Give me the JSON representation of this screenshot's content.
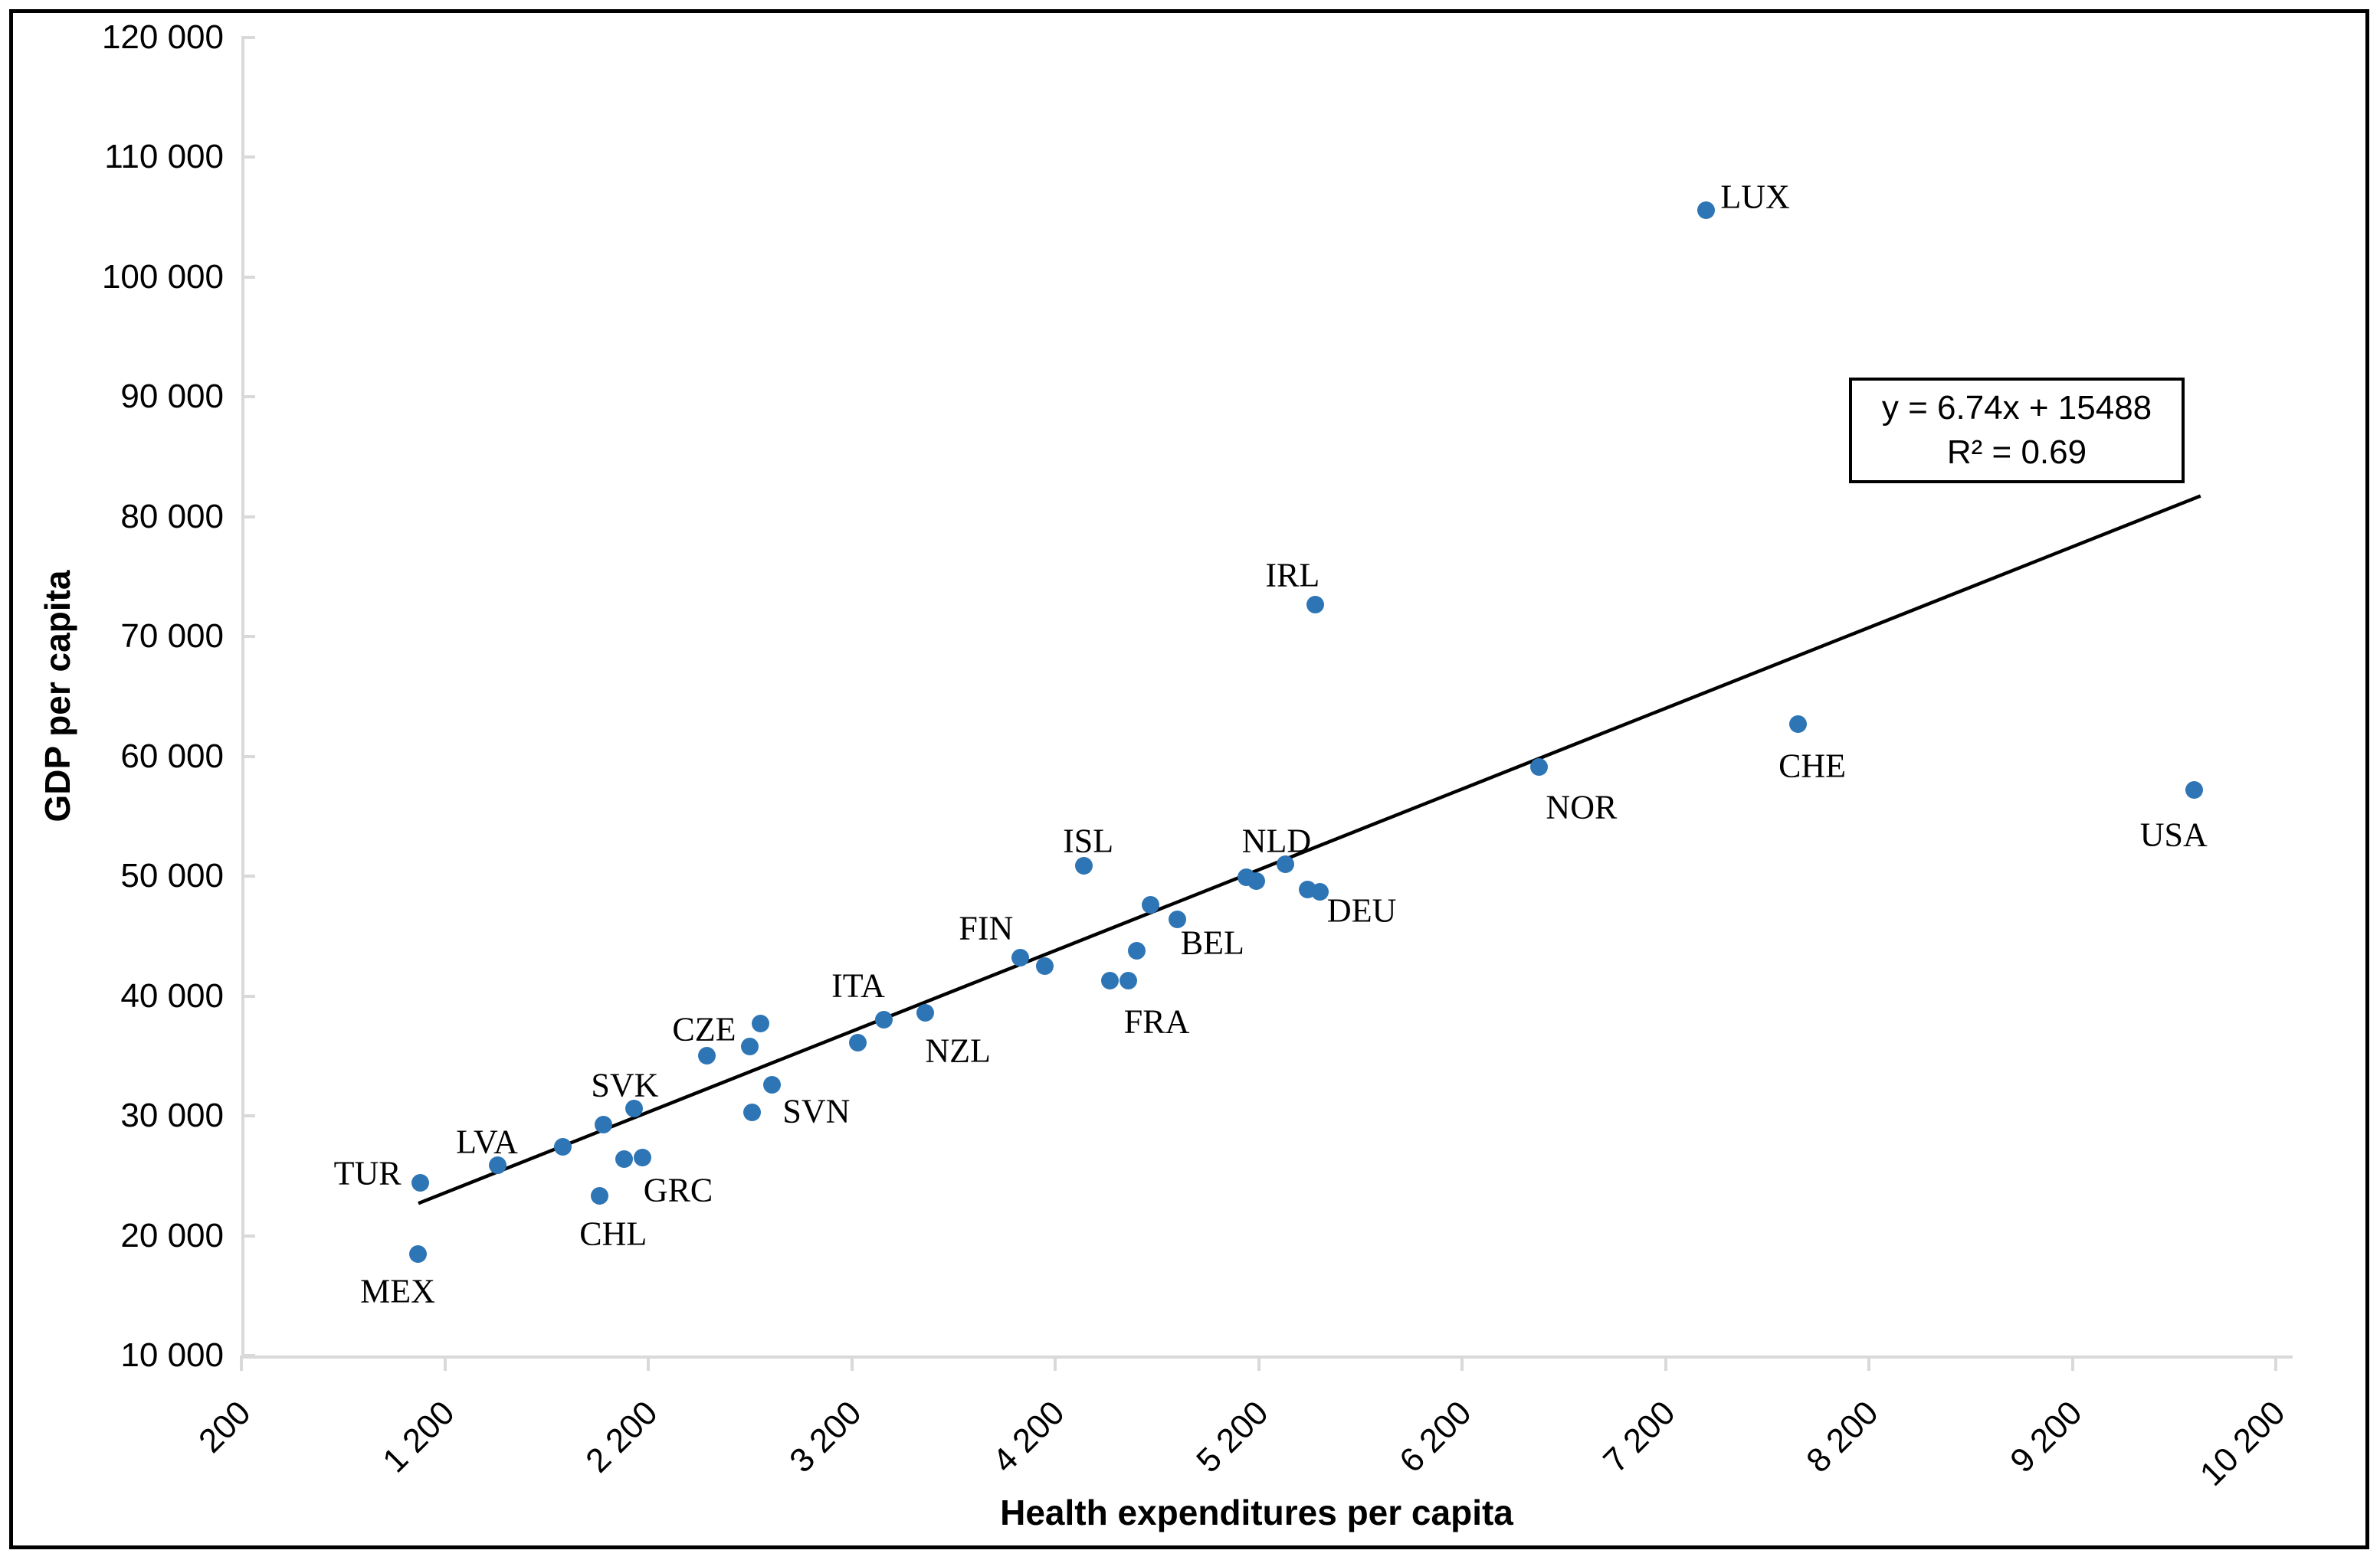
{
  "chart_data": {
    "type": "scatter",
    "title": "",
    "xlabel": "Health expenditures per capita",
    "ylabel": "GDP per capita",
    "xlim": [
      200,
      10280
    ],
    "ylim": [
      10000,
      120000
    ],
    "grid": false,
    "legend": "none",
    "marker_color": "#2E75B6",
    "axis_color": "#D9D9D9",
    "x_ticks": [
      {
        "value": 200,
        "label": "200"
      },
      {
        "value": 1200,
        "label": "1 200"
      },
      {
        "value": 2200,
        "label": "2 200"
      },
      {
        "value": 3200,
        "label": "3 200"
      },
      {
        "value": 4200,
        "label": "4 200"
      },
      {
        "value": 5200,
        "label": "5 200"
      },
      {
        "value": 6200,
        "label": "6 200"
      },
      {
        "value": 7200,
        "label": "7 200"
      },
      {
        "value": 8200,
        "label": "8 200"
      },
      {
        "value": 9200,
        "label": "9 200"
      },
      {
        "value": 10200,
        "label": "10 200"
      }
    ],
    "y_ticks": [
      {
        "value": 10000,
        "label": "10 000"
      },
      {
        "value": 20000,
        "label": "20 000"
      },
      {
        "value": 30000,
        "label": "30 000"
      },
      {
        "value": 40000,
        "label": "40 000"
      },
      {
        "value": 50000,
        "label": "50 000"
      },
      {
        "value": 60000,
        "label": "60 000"
      },
      {
        "value": 70000,
        "label": "70 000"
      },
      {
        "value": 80000,
        "label": "80 000"
      },
      {
        "value": 90000,
        "label": "90 000"
      },
      {
        "value": 100000,
        "label": "100 000"
      },
      {
        "value": 110000,
        "label": "110 000"
      },
      {
        "value": 120000,
        "label": "120 000"
      }
    ],
    "points": [
      {
        "label": "MEX",
        "x": 1070,
        "y": 18500,
        "label_offset": [
          -27,
          49
        ]
      },
      {
        "label": "TUR",
        "x": 1080,
        "y": 24400,
        "label_offset": [
          -69,
          -13
        ]
      },
      {
        "label": "LVA",
        "x": 1460,
        "y": 25900,
        "label_offset": [
          -14,
          -30
        ]
      },
      {
        "label": "",
        "x": 1780,
        "y": 27400
      },
      {
        "label": "CHL",
        "x": 1960,
        "y": 23300,
        "label_offset": [
          18,
          49
        ]
      },
      {
        "label": "",
        "x": 1980,
        "y": 29300
      },
      {
        "label": "",
        "x": 2080,
        "y": 26400
      },
      {
        "label": "SVK",
        "x": 2130,
        "y": 30600,
        "label_offset": [
          -12,
          -31
        ]
      },
      {
        "label": "GRC",
        "x": 2170,
        "y": 26500,
        "label_offset": [
          47,
          42
        ]
      },
      {
        "label": "CZE",
        "x": 2490,
        "y": 35000,
        "label_offset": [
          -4,
          -35
        ]
      },
      {
        "label": "",
        "x": 2700,
        "y": 35800
      },
      {
        "label": "SVN",
        "x": 2710,
        "y": 30300,
        "label_offset": [
          84,
          -1
        ]
      },
      {
        "label": "",
        "x": 2750,
        "y": 37700
      },
      {
        "label": "",
        "x": 2810,
        "y": 32600
      },
      {
        "label": "",
        "x": 3230,
        "y": 36100
      },
      {
        "label": "ITA",
        "x": 3360,
        "y": 38000,
        "label_offset": [
          -34,
          -45
        ]
      },
      {
        "label": "NZL",
        "x": 3560,
        "y": 38600,
        "label_offset": [
          43,
          49
        ]
      },
      {
        "label": "FIN",
        "x": 4030,
        "y": 43200,
        "label_offset": [
          -45,
          -39
        ]
      },
      {
        "label": "",
        "x": 4150,
        "y": 42500
      },
      {
        "label": "ISL",
        "x": 4340,
        "y": 50900,
        "label_offset": [
          6,
          -32
        ]
      },
      {
        "label": "",
        "x": 4470,
        "y": 41300
      },
      {
        "label": "FRA",
        "x": 4560,
        "y": 41300,
        "label_offset": [
          37,
          54
        ]
      },
      {
        "label": "",
        "x": 4600,
        "y": 43800
      },
      {
        "label": "",
        "x": 4670,
        "y": 47600
      },
      {
        "label": "BEL",
        "x": 4800,
        "y": 46400,
        "label_offset": [
          46,
          30
        ]
      },
      {
        "label": "",
        "x": 5140,
        "y": 49900
      },
      {
        "label": "",
        "x": 5190,
        "y": 49600
      },
      {
        "label": "NLD",
        "x": 5330,
        "y": 51000,
        "label_offset": [
          -11,
          -31
        ]
      },
      {
        "label": "",
        "x": 5440,
        "y": 48900
      },
      {
        "label": "DEU",
        "x": 5500,
        "y": 48700,
        "label_offset": [
          55,
          24
        ]
      },
      {
        "label": "IRL",
        "x": 5480,
        "y": 72700,
        "label_offset": [
          -30,
          -38
        ]
      },
      {
        "label": "NOR",
        "x": 6580,
        "y": 59100,
        "label_offset": [
          55,
          52
        ]
      },
      {
        "label": "LUX",
        "x": 7400,
        "y": 105600,
        "label_offset": [
          64,
          -17
        ]
      },
      {
        "label": "CHE",
        "x": 7850,
        "y": 62700,
        "label_offset": [
          19,
          55
        ]
      },
      {
        "label": "USA",
        "x": 9800,
        "y": 57200,
        "label_offset": [
          -27,
          58
        ]
      }
    ],
    "trendline": {
      "slope": 6.74,
      "intercept": 15488,
      "x_start": 1070,
      "x_end": 9830,
      "color": "#000000",
      "equation_label": "y = 6.74x + 15488",
      "r_squared_label": "R² = 0.69"
    }
  }
}
